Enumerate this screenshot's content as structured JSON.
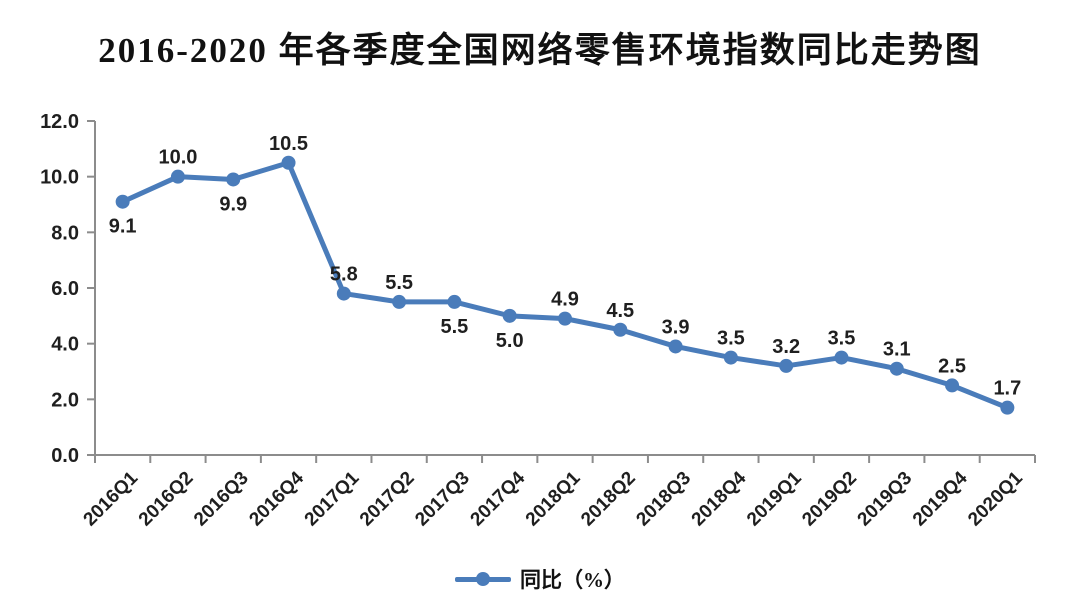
{
  "title": "2016-2020 年各季度全国网络零售环境指数同比走势图",
  "legend": {
    "label": "同比（%）"
  },
  "colors": {
    "series": "#4a7cba",
    "axis": "#8c8c8c",
    "text": "#1f1f1f"
  },
  "chart_data": {
    "type": "line",
    "title": "2016-2020 年各季度全国网络零售环境指数同比走势图",
    "categories": [
      "2016Q1",
      "2016Q2",
      "2016Q3",
      "2016Q4",
      "2017Q1",
      "2017Q2",
      "2017Q3",
      "2017Q4",
      "2018Q1",
      "2018Q2",
      "2018Q3",
      "2018Q4",
      "2019Q1",
      "2019Q2",
      "2019Q3",
      "2019Q4",
      "2020Q1"
    ],
    "series": [
      {
        "name": "同比（%）",
        "color": "#4a7cba",
        "values": [
          9.1,
          10.0,
          9.9,
          10.5,
          5.8,
          5.5,
          5.5,
          5.0,
          4.9,
          4.5,
          3.9,
          3.5,
          3.2,
          3.5,
          3.1,
          2.5,
          1.7
        ]
      }
    ],
    "data_label_positions": [
      "below",
      "above",
      "below",
      "above",
      "above",
      "above",
      "below",
      "below",
      "above",
      "above",
      "above",
      "above",
      "above",
      "above",
      "above",
      "above",
      "above"
    ],
    "xlabel": "",
    "ylabel": "",
    "ylim": [
      0,
      12
    ],
    "ytick_step": 2,
    "ytick_decimals": 1,
    "grid": false,
    "legend_position": "bottom",
    "x_tick_label_rotation_deg": -45
  }
}
